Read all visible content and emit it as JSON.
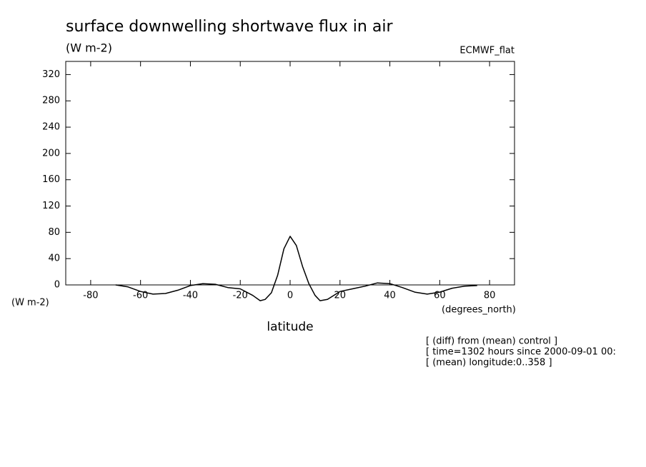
{
  "chart_data": {
    "type": "line",
    "title": "surface downwelling shortwave flux in air",
    "subtitle": "(W m-2)",
    "dataset": "ECMWF_flat",
    "ylabel": "(W m-2)",
    "xunit": "(degrees_north)",
    "xlabel": "latitude",
    "notes": [
      "[ (diff) from (mean) control ]",
      "[ time=1302 hours since 2000-09-01 00:",
      "[ (mean) longitude:0..358 ]"
    ],
    "x": [
      -70,
      -65,
      -60,
      -55,
      -50,
      -45,
      -40,
      -35,
      -30,
      -25,
      -20,
      -15,
      -12,
      -10,
      -7.5,
      -5,
      -2.5,
      0,
      2.5,
      5,
      7.5,
      10,
      12,
      15,
      20,
      25,
      30,
      35,
      40,
      45,
      50,
      55,
      60,
      65,
      70,
      75
    ],
    "values": [
      0,
      -3,
      -10,
      -14,
      -13,
      -8,
      -1,
      2,
      1,
      -4,
      -6,
      -16,
      -24,
      -22,
      -12,
      15,
      55,
      74,
      60,
      28,
      2,
      -16,
      -24,
      -22,
      -10,
      -6,
      -2,
      3,
      2,
      -4,
      -11,
      -14,
      -11,
      -5,
      -2,
      -1
    ],
    "color": "#000000",
    "xlim": [
      -90,
      90
    ],
    "xticks": [
      -80,
      -60,
      -40,
      -20,
      0,
      20,
      40,
      60,
      80
    ],
    "ylim": [
      0,
      340
    ],
    "yticks": [
      0,
      40,
      80,
      120,
      160,
      200,
      240,
      280,
      320
    ]
  }
}
